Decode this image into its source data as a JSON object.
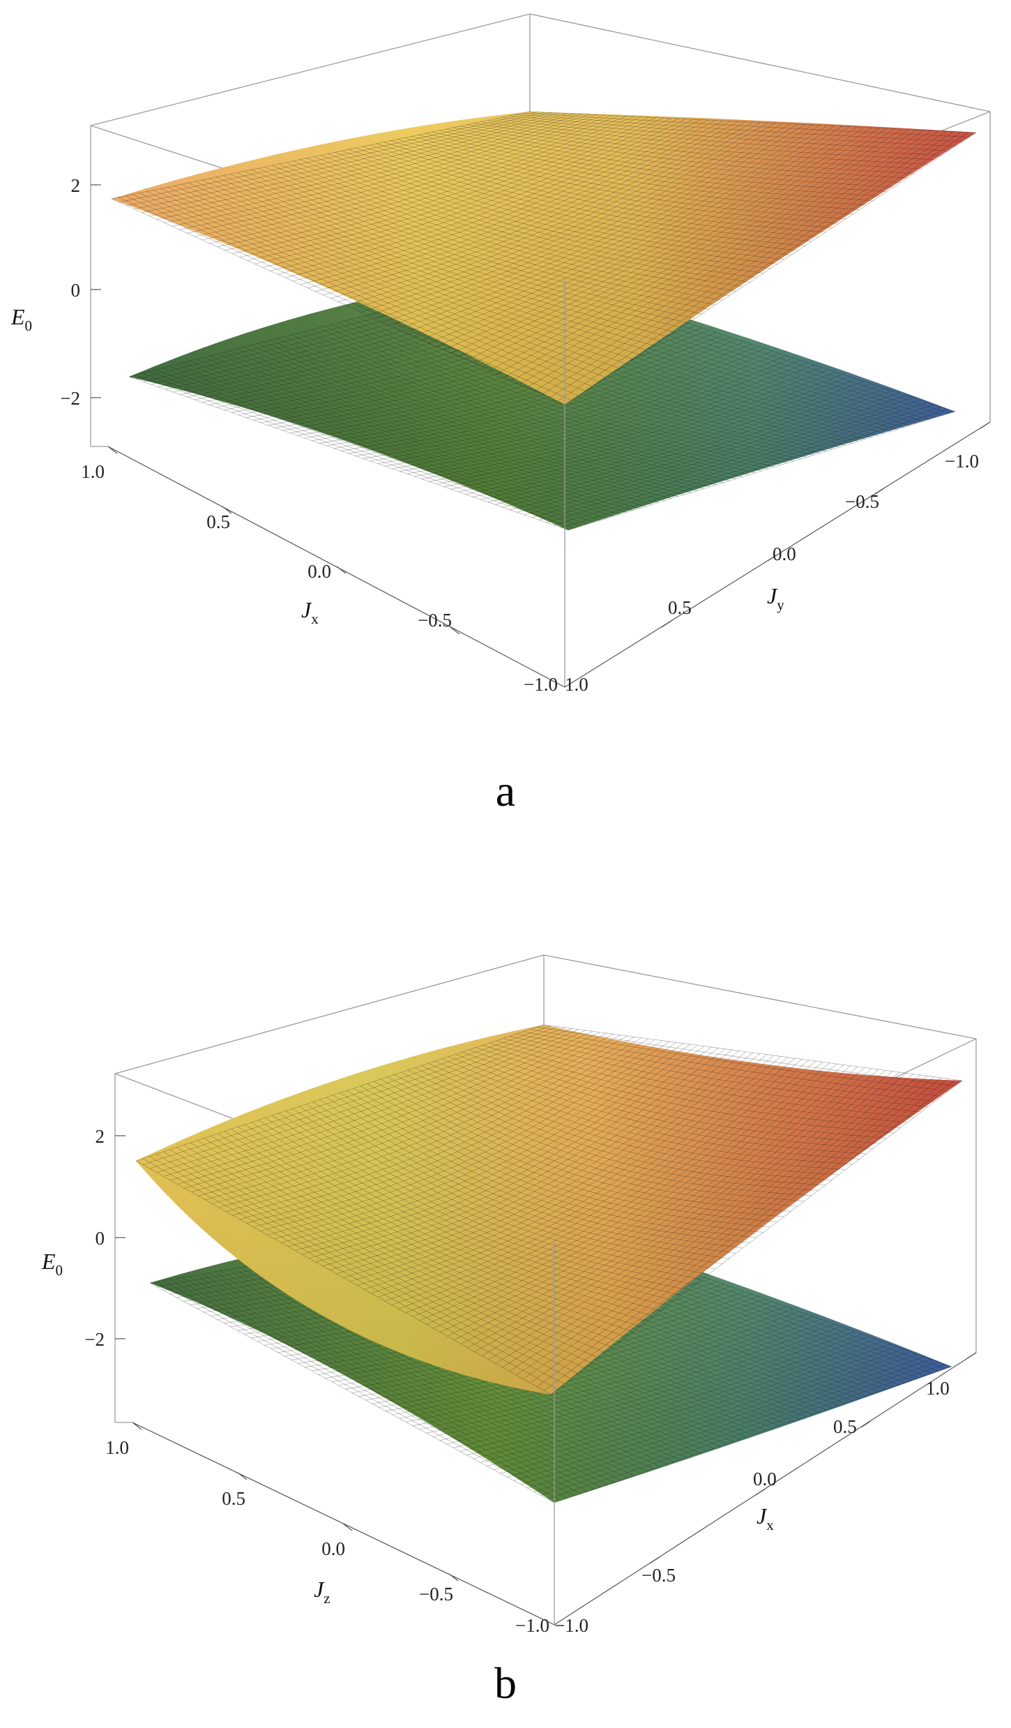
{
  "chart_data": [
    {
      "panel": "a",
      "type": "surface3d",
      "caption": "a",
      "zlabel": "E",
      "zlabel_sub": "0",
      "xlabel": "J",
      "xlabel_sub": "x",
      "ylabel": "J",
      "ylabel_sub": "y",
      "zticks": [
        "2",
        "0",
        "−2"
      ],
      "xticks": [
        "1.0",
        "0.5",
        "0.0",
        "−0.5",
        "−1.0"
      ],
      "yticks": [
        "−1.0",
        "−0.5",
        "0.0",
        "0.5",
        "1.0"
      ],
      "xlim": [
        -1,
        1
      ],
      "ylim": [
        -1,
        1
      ],
      "zlim": [
        -3,
        3
      ],
      "surfaces": [
        {
          "corner_values": {
            "near": 0.2,
            "left": 1.7,
            "back": 2.9,
            "right": 2.6
          },
          "colors": [
            "#e8c34a",
            "#c0392b"
          ]
        },
        {
          "corner_values": {
            "near": -2.4,
            "left": -1.7,
            "back": -0.1,
            "right": -2.7
          },
          "colors": [
            "#4f8f3a",
            "#3b5c9c"
          ]
        }
      ]
    },
    {
      "panel": "b",
      "type": "surface3d",
      "caption": "b",
      "zlabel": "E",
      "zlabel_sub": "0",
      "xlabel": "J",
      "xlabel_sub": "z",
      "ylabel": "J",
      "ylabel_sub": "x",
      "zticks": [
        "2",
        "0",
        "−2"
      ],
      "xticks": [
        "1.0",
        "0.5",
        "0.0",
        "−0.5",
        "−1.0"
      ],
      "yticks": [
        "−1.0",
        "−0.5",
        "0.0",
        "0.5",
        "1.0"
      ],
      "xlim": [
        -1,
        1
      ],
      "ylim": [
        -1,
        1
      ],
      "zlim": [
        -3,
        3
      ],
      "surfaces": [
        {
          "corner_values": {
            "near": -1.6,
            "left": 0.9,
            "back": 2.9,
            "right": 2.6
          },
          "colors": [
            "#e8c34a",
            "#c0392b"
          ]
        },
        {
          "corner_values": {
            "near": -2.6,
            "left": -1.2,
            "back": -0.1,
            "right": -2.6
          },
          "colors": [
            "#4f8f3a",
            "#3b5c9c"
          ]
        }
      ]
    }
  ]
}
